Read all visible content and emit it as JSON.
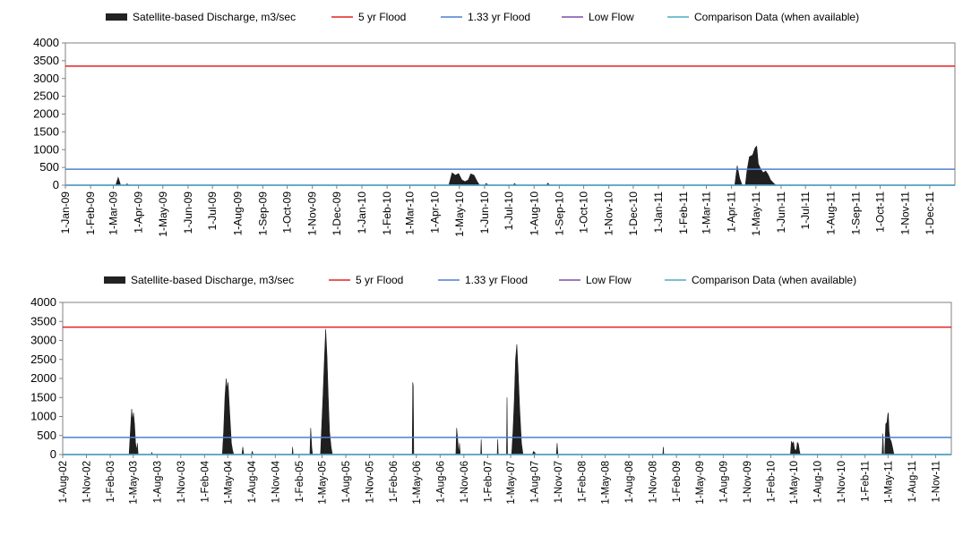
{
  "chart_data": [
    {
      "type": "area",
      "legend": {
        "placement": "top",
        "entries": [
          {
            "label": "Satellite-based Discharge, m3/sec",
            "symbol": "area",
            "color": "#222222"
          },
          {
            "label": "5 yr Flood",
            "symbol": "line",
            "color": "#e32222"
          },
          {
            "label": "1.33 yr Flood",
            "symbol": "line",
            "color": "#4f7fd0"
          },
          {
            "label": "Low Flow",
            "symbol": "line",
            "color": "#7d4fa8"
          },
          {
            "label": "Comparison Data (when available)",
            "symbol": "line",
            "color": "#4bacc6"
          }
        ]
      },
      "ylim": [
        0,
        4000
      ],
      "y_ticks": [
        "4000",
        "3500",
        "3000",
        "2500",
        "2000",
        "1500",
        "1000",
        "500",
        "0"
      ],
      "x_range": [
        "2009-01-01",
        "2011-12-31"
      ],
      "x_tick_labels": [
        "1-Jan-09",
        "1-Feb-09",
        "1-Mar-09",
        "1-Apr-09",
        "1-May-09",
        "1-Jun-09",
        "1-Jul-09",
        "1-Aug-09",
        "1-Sep-09",
        "1-Oct-09",
        "1-Nov-09",
        "1-Dec-09",
        "1-Jan-10",
        "1-Feb-10",
        "1-Mar-10",
        "1-Apr-10",
        "1-May-10",
        "1-Jun-10",
        "1-Jul-10",
        "1-Aug-10",
        "1-Sep-10",
        "1-Oct-10",
        "1-Nov-10",
        "1-Dec-10",
        "1-Jan-11",
        "1-Feb-11",
        "1-Mar-11",
        "1-Apr-11",
        "1-May-11",
        "1-Jun-11",
        "1-Jul-11",
        "1-Aug-11",
        "1-Sep-11",
        "1-Oct-11",
        "1-Nov-11",
        "1-Dec-11"
      ],
      "flood_5yr": 3350,
      "flood_1_33yr": 450,
      "low_flow": 0,
      "comparison": 0,
      "series": [
        {
          "name": "Satellite-based Discharge, m3/sec",
          "points": [
            [
              "2009-01-01",
              0
            ],
            [
              "2009-03-04",
              0
            ],
            [
              "2009-03-07",
              220
            ],
            [
              "2009-03-10",
              0
            ],
            [
              "2009-03-16",
              0
            ],
            [
              "2009-03-18",
              40
            ],
            [
              "2009-03-20",
              0
            ],
            [
              "2010-04-18",
              0
            ],
            [
              "2010-04-22",
              350
            ],
            [
              "2010-04-26",
              280
            ],
            [
              "2010-04-30",
              330
            ],
            [
              "2010-05-04",
              150
            ],
            [
              "2010-05-08",
              100
            ],
            [
              "2010-05-12",
              150
            ],
            [
              "2010-05-15",
              320
            ],
            [
              "2010-05-19",
              280
            ],
            [
              "2010-05-23",
              100
            ],
            [
              "2010-05-26",
              0
            ],
            [
              "2010-06-01",
              0
            ],
            [
              "2010-06-03",
              50
            ],
            [
              "2010-06-06",
              0
            ],
            [
              "2010-07-06",
              0
            ],
            [
              "2010-07-08",
              50
            ],
            [
              "2010-07-10",
              0
            ],
            [
              "2010-08-16",
              0
            ],
            [
              "2010-08-18",
              60
            ],
            [
              "2010-08-20",
              0
            ],
            [
              "2011-04-05",
              0
            ],
            [
              "2011-04-08",
              550
            ],
            [
              "2011-04-11",
              200
            ],
            [
              "2011-04-14",
              0
            ],
            [
              "2011-04-18",
              0
            ],
            [
              "2011-04-20",
              400
            ],
            [
              "2011-04-23",
              800
            ],
            [
              "2011-04-27",
              850
            ],
            [
              "2011-04-30",
              1050
            ],
            [
              "2011-05-02",
              1100
            ],
            [
              "2011-05-04",
              600
            ],
            [
              "2011-05-07",
              450
            ],
            [
              "2011-05-10",
              350
            ],
            [
              "2011-05-13",
              400
            ],
            [
              "2011-05-16",
              300
            ],
            [
              "2011-05-19",
              150
            ],
            [
              "2011-05-23",
              50
            ],
            [
              "2011-05-26",
              0
            ],
            [
              "2011-12-31",
              0
            ]
          ]
        }
      ]
    },
    {
      "type": "area",
      "legend": {
        "placement": "top",
        "entries": [
          {
            "label": "Satellite-based Discharge, m3/sec",
            "symbol": "area",
            "color": "#222222"
          },
          {
            "label": "5 yr Flood",
            "symbol": "line",
            "color": "#e32222"
          },
          {
            "label": "1.33 yr Flood",
            "symbol": "line",
            "color": "#4f7fd0"
          },
          {
            "label": "Low Flow",
            "symbol": "line",
            "color": "#7d4fa8"
          },
          {
            "label": "Comparison Data (when available)",
            "symbol": "line",
            "color": "#4bacc6"
          }
        ]
      },
      "ylim": [
        0,
        4000
      ],
      "y_ticks": [
        "4000",
        "3500",
        "3000",
        "2500",
        "2000",
        "1500",
        "1000",
        "500",
        "0"
      ],
      "x_range": [
        "2002-08-01",
        "2011-12-31"
      ],
      "x_tick_labels": [
        "1-Aug-02",
        "1-Nov-02",
        "1-Feb-03",
        "1-May-03",
        "1-Aug-03",
        "1-Nov-03",
        "1-Feb-04",
        "1-May-04",
        "1-Aug-04",
        "1-Nov-04",
        "1-Feb-05",
        "1-May-05",
        "1-Aug-05",
        "1-Nov-05",
        "1-Feb-06",
        "1-May-06",
        "1-Aug-06",
        "1-Nov-06",
        "1-Feb-07",
        "1-May-07",
        "1-Aug-07",
        "1-Nov-07",
        "1-Feb-08",
        "1-May-08",
        "1-Aug-08",
        "1-Nov-08",
        "1-Feb-09",
        "1-May-09",
        "1-Aug-09",
        "1-Nov-09",
        "1-Feb-10",
        "1-May-10",
        "1-Aug-10",
        "1-Nov-10",
        "1-Feb-11",
        "1-May-11",
        "1-Aug-11",
        "1-Nov-11"
      ],
      "flood_5yr": 3350,
      "flood_1_33yr": 450,
      "low_flow": 0,
      "comparison": 0,
      "series": [
        {
          "name": "Satellite-based Discharge, m3/sec",
          "points": [
            [
              "2002-08-01",
              0
            ],
            [
              "2003-04-15",
              0
            ],
            [
              "2003-04-20",
              600
            ],
            [
              "2003-04-25",
              1200
            ],
            [
              "2003-04-28",
              900
            ],
            [
              "2003-05-02",
              1100
            ],
            [
              "2003-05-06",
              800
            ],
            [
              "2003-05-10",
              300
            ],
            [
              "2003-05-14",
              100
            ],
            [
              "2003-05-17",
              300
            ],
            [
              "2003-05-20",
              0
            ],
            [
              "2003-07-10",
              0
            ],
            [
              "2003-07-12",
              60
            ],
            [
              "2003-07-14",
              0
            ],
            [
              "2004-04-10",
              0
            ],
            [
              "2004-04-15",
              600
            ],
            [
              "2004-04-20",
              1500
            ],
            [
              "2004-04-25",
              2000
            ],
            [
              "2004-04-28",
              1700
            ],
            [
              "2004-05-02",
              1900
            ],
            [
              "2004-05-06",
              1400
            ],
            [
              "2004-05-10",
              900
            ],
            [
              "2004-05-15",
              300
            ],
            [
              "2004-05-20",
              100
            ],
            [
              "2004-05-24",
              0
            ],
            [
              "2004-06-25",
              0
            ],
            [
              "2004-06-28",
              200
            ],
            [
              "2004-07-02",
              0
            ],
            [
              "2004-08-01",
              0
            ],
            [
              "2004-08-04",
              90
            ],
            [
              "2004-08-07",
              0
            ],
            [
              "2005-01-05",
              0
            ],
            [
              "2005-01-07",
              200
            ],
            [
              "2005-01-09",
              0
            ],
            [
              "2005-03-15",
              0
            ],
            [
              "2005-03-18",
              700
            ],
            [
              "2005-03-22",
              200
            ],
            [
              "2005-03-25",
              0
            ],
            [
              "2005-04-25",
              0
            ],
            [
              "2005-04-30",
              800
            ],
            [
              "2005-05-05",
              1600
            ],
            [
              "2005-05-10",
              2500
            ],
            [
              "2005-05-15",
              3300
            ],
            [
              "2005-05-20",
              2600
            ],
            [
              "2005-05-25",
              1500
            ],
            [
              "2005-05-30",
              600
            ],
            [
              "2005-06-05",
              200
            ],
            [
              "2005-06-10",
              0
            ],
            [
              "2006-04-15",
              0
            ],
            [
              "2006-04-17",
              1900
            ],
            [
              "2006-04-19",
              1800
            ],
            [
              "2006-04-21",
              0
            ],
            [
              "2006-10-01",
              0
            ],
            [
              "2006-10-04",
              700
            ],
            [
              "2006-10-08",
              400
            ],
            [
              "2006-10-12",
              0
            ],
            [
              "2006-10-15",
              300
            ],
            [
              "2006-10-18",
              0
            ],
            [
              "2007-01-05",
              0
            ],
            [
              "2007-01-07",
              400
            ],
            [
              "2007-01-09",
              0
            ],
            [
              "2007-03-10",
              0
            ],
            [
              "2007-03-12",
              400
            ],
            [
              "2007-03-14",
              0
            ],
            [
              "2007-04-15",
              0
            ],
            [
              "2007-04-17",
              1500
            ],
            [
              "2007-04-19",
              0
            ],
            [
              "2007-05-05",
              0
            ],
            [
              "2007-05-10",
              600
            ],
            [
              "2007-05-15",
              1400
            ],
            [
              "2007-05-20",
              2500
            ],
            [
              "2007-05-25",
              2900
            ],
            [
              "2007-05-30",
              2200
            ],
            [
              "2007-06-05",
              1200
            ],
            [
              "2007-06-12",
              300
            ],
            [
              "2007-06-18",
              0
            ],
            [
              "2007-07-25",
              0
            ],
            [
              "2007-07-28",
              80
            ],
            [
              "2007-08-02",
              60
            ],
            [
              "2007-08-06",
              0
            ],
            [
              "2007-10-25",
              0
            ],
            [
              "2007-10-28",
              300
            ],
            [
              "2007-10-31",
              0
            ],
            [
              "2008-12-10",
              0
            ],
            [
              "2008-12-12",
              200
            ],
            [
              "2008-12-14",
              0
            ],
            [
              "2010-04-18",
              0
            ],
            [
              "2010-04-22",
              350
            ],
            [
              "2010-04-26",
              280
            ],
            [
              "2010-04-30",
              330
            ],
            [
              "2010-05-04",
              150
            ],
            [
              "2010-05-08",
              100
            ],
            [
              "2010-05-12",
              150
            ],
            [
              "2010-05-15",
              320
            ],
            [
              "2010-05-19",
              280
            ],
            [
              "2010-05-23",
              100
            ],
            [
              "2010-05-26",
              0
            ],
            [
              "2011-04-08",
              0
            ],
            [
              "2011-04-11",
              550
            ],
            [
              "2011-04-14",
              0
            ],
            [
              "2011-04-18",
              0
            ],
            [
              "2011-04-22",
              800
            ],
            [
              "2011-04-27",
              850
            ],
            [
              "2011-04-30",
              1050
            ],
            [
              "2011-05-02",
              1100
            ],
            [
              "2011-05-05",
              600
            ],
            [
              "2011-05-09",
              400
            ],
            [
              "2011-05-13",
              350
            ],
            [
              "2011-05-18",
              200
            ],
            [
              "2011-05-24",
              0
            ],
            [
              "2011-12-31",
              0
            ]
          ]
        }
      ]
    }
  ]
}
